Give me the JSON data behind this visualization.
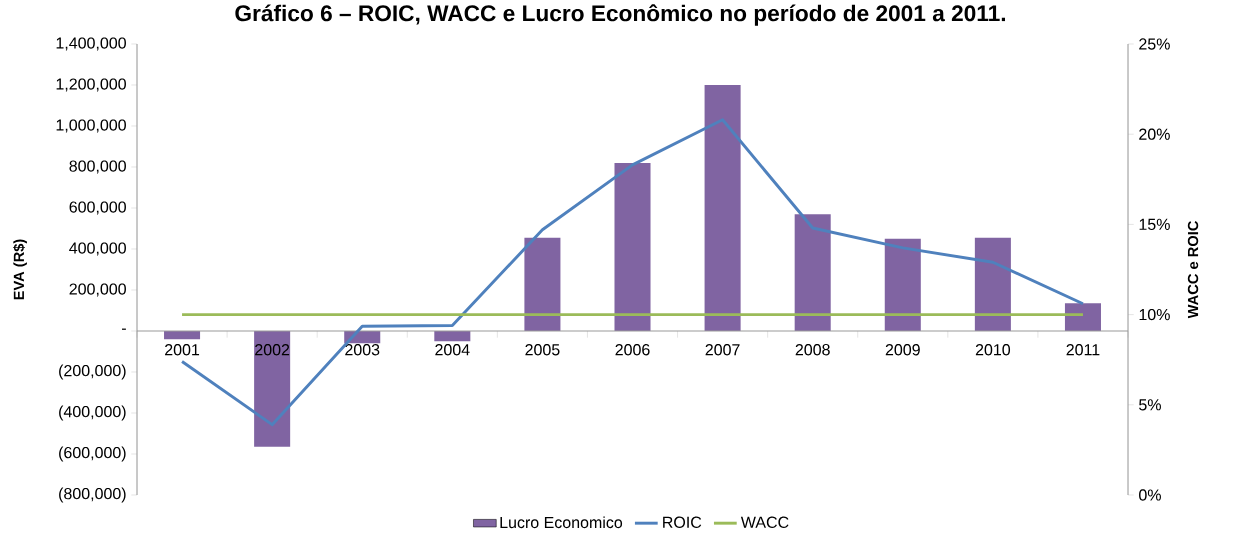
{
  "chart_data": {
    "type": "bar",
    "title": "Gráfico 6 – ROIC, WACC e Lucro Econômico no período de 2001 a 2011.",
    "ylabel": "EVA (R$)",
    "y2label": "WACC e ROIC",
    "categories": [
      "2001",
      "2002",
      "2003",
      "2004",
      "2005",
      "2006",
      "2007",
      "2008",
      "2009",
      "2010",
      "2011"
    ],
    "series": [
      {
        "name": "Lucro Economico",
        "color": "#8064a2",
        "values": [
          -40000,
          -565000,
          -60000,
          -50000,
          455000,
          820000,
          1200000,
          570000,
          450000,
          455000,
          135000
        ]
      },
      {
        "name": "ROIC",
        "type": "line",
        "axis": "y2",
        "color": "#4f81bd",
        "values": [
          7.4,
          3.9,
          9.35,
          9.4,
          14.7,
          18.3,
          20.8,
          14.8,
          13.7,
          12.9,
          10.6
        ]
      },
      {
        "name": "WACC",
        "type": "line",
        "axis": "y2",
        "color": "#9bbb59",
        "values": [
          10,
          10,
          10,
          10,
          10,
          10,
          10,
          10,
          10,
          10,
          10
        ]
      }
    ],
    "ylim": [
      -800000,
      1400000
    ],
    "yticks": [
      {
        "value": -800000,
        "label": "(800,000)"
      },
      {
        "value": -600000,
        "label": "(600,000)"
      },
      {
        "value": -400000,
        "label": "(400,000)"
      },
      {
        "value": -200000,
        "label": "(200,000)"
      },
      {
        "value": 0,
        "label": "-"
      },
      {
        "value": 200000,
        "label": "200,000"
      },
      {
        "value": 400000,
        "label": "400,000"
      },
      {
        "value": 600000,
        "label": "600,000"
      },
      {
        "value": 800000,
        "label": "800,000"
      },
      {
        "value": 1000000,
        "label": "1,000,000"
      },
      {
        "value": 1200000,
        "label": "1,200,000"
      },
      {
        "value": 1400000,
        "label": "1,400,000"
      }
    ],
    "y2lim": [
      0,
      25
    ],
    "y2ticks": [
      {
        "value": 0,
        "label": "0%"
      },
      {
        "value": 5,
        "label": "5%"
      },
      {
        "value": 10,
        "label": "10%"
      },
      {
        "value": 15,
        "label": "15%"
      },
      {
        "value": 20,
        "label": "20%"
      },
      {
        "value": 25,
        "label": "25%"
      }
    ],
    "legend": "bottom",
    "grid": false
  }
}
